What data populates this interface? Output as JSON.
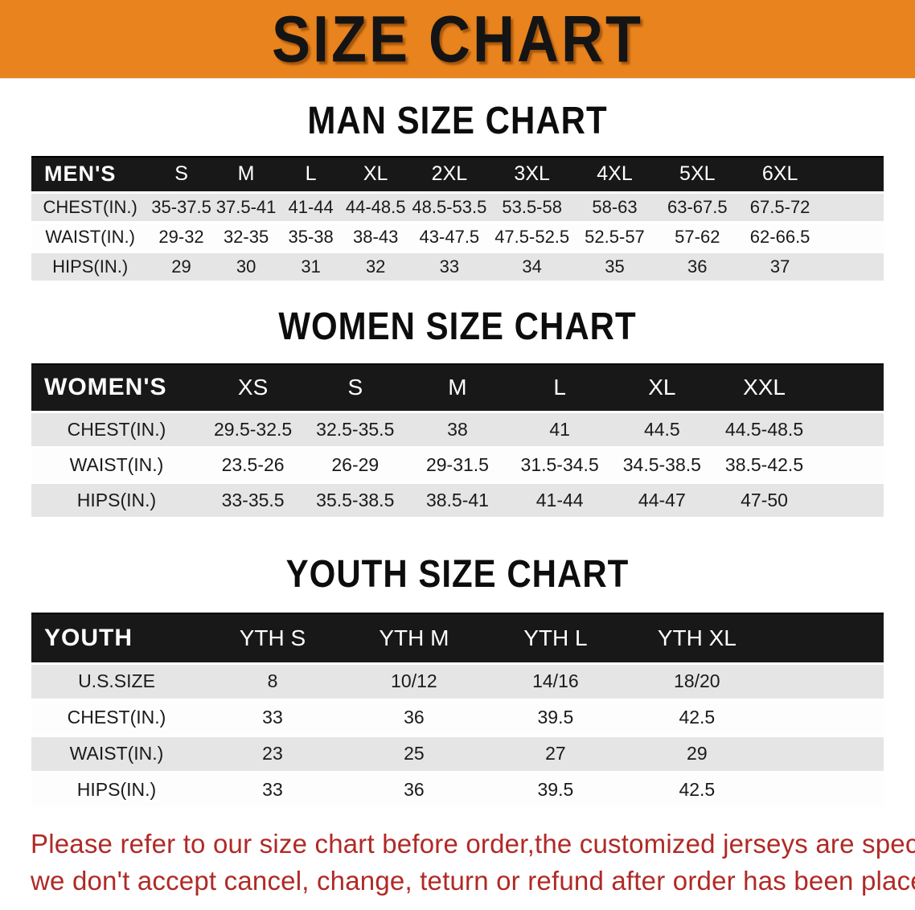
{
  "banner": {
    "title": "SIZE CHART"
  },
  "colors": {
    "banner_bg": "#E8831D",
    "table_header_bg": "#181818",
    "row_stripe": "#e5e5e5",
    "disclaimer_red": "#B02A26"
  },
  "sections": [
    {
      "heading": "MAN SIZE CHART",
      "table": {
        "header_label": "MEN'S",
        "columns": [
          "S",
          "M",
          "L",
          "XL",
          "2XL",
          "3XL",
          "4XL",
          "5XL",
          "6XL"
        ],
        "rows": [
          {
            "label": "CHEST(IN.)",
            "values": [
              "35-37.5",
              "37.5-41",
              "41-44",
              "44-48.5",
              "48.5-53.5",
              "53.5-58",
              "58-63",
              "63-67.5",
              "67.5-72"
            ]
          },
          {
            "label": "WAIST(IN.)",
            "values": [
              "29-32",
              "32-35",
              "35-38",
              "38-43",
              "43-47.5",
              "47.5-52.5",
              "52.5-57",
              "57-62",
              "62-66.5"
            ]
          },
          {
            "label": "HIPS(IN.)",
            "values": [
              "29",
              "30",
              "31",
              "32",
              "33",
              "34",
              "35",
              "36",
              "37"
            ]
          }
        ]
      }
    },
    {
      "heading": "WOMEN SIZE CHART",
      "table": {
        "header_label": "WOMEN'S",
        "columns": [
          "XS",
          "S",
          "M",
          "L",
          "XL",
          "XXL"
        ],
        "rows": [
          {
            "label": "CHEST(IN.)",
            "values": [
              "29.5-32.5",
              "32.5-35.5",
              "38",
              "41",
              "44.5",
              "44.5-48.5"
            ]
          },
          {
            "label": "WAIST(IN.)",
            "values": [
              "23.5-26",
              "26-29",
              "29-31.5",
              "31.5-34.5",
              "34.5-38.5",
              "38.5-42.5"
            ]
          },
          {
            "label": "HIPS(IN.)",
            "values": [
              "33-35.5",
              "35.5-38.5",
              "38.5-41",
              "41-44",
              "44-47",
              "47-50"
            ]
          }
        ]
      }
    },
    {
      "heading": "YOUTH SIZE CHART",
      "table": {
        "header_label": "YOUTH",
        "columns": [
          "YTH S",
          "YTH M",
          "YTH L",
          "YTH XL"
        ],
        "rows": [
          {
            "label": "U.S.SIZE",
            "values": [
              "8",
              "10/12",
              "14/16",
              "18/20"
            ]
          },
          {
            "label": "CHEST(IN.)",
            "values": [
              "33",
              "36",
              "39.5",
              "42.5"
            ]
          },
          {
            "label": "WAIST(IN.)",
            "values": [
              "23",
              "25",
              "27",
              "29"
            ]
          },
          {
            "label": "HIPS(IN.)",
            "values": [
              "33",
              "36",
              "39.5",
              "42.5"
            ]
          }
        ]
      }
    }
  ],
  "disclaimer": {
    "line1": "Please refer to our size chart before order,the customized jerseys are special products,",
    "line2": "we don't accept cancel, change, teturn or refund after order has been placed!"
  }
}
